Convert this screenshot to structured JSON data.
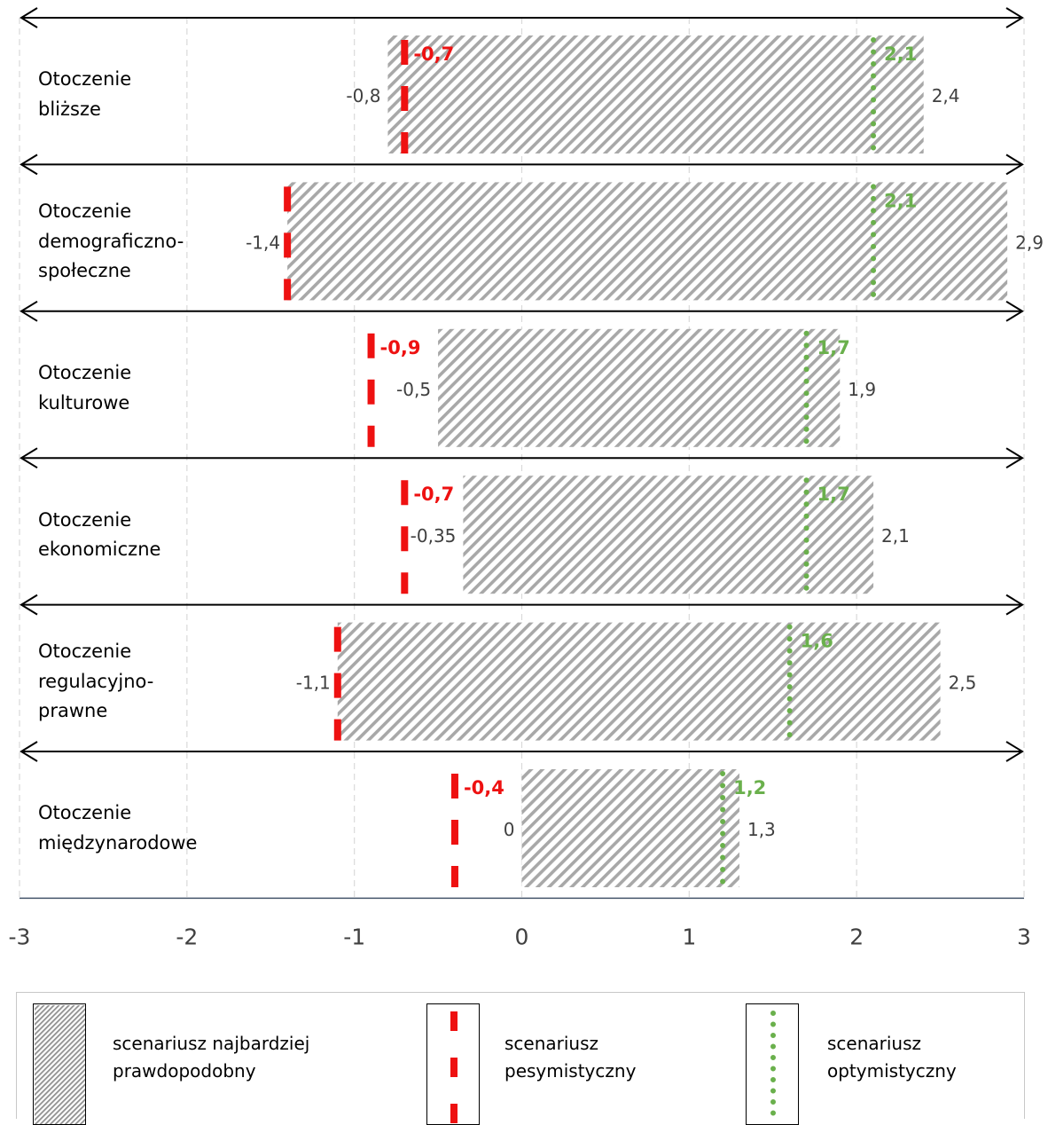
{
  "chart_data": {
    "type": "bar",
    "title": "",
    "xlabel": "",
    "ylabel": "",
    "xlim": [
      -3,
      3
    ],
    "x_ticks": [
      "-3",
      "-2",
      "-1",
      "0",
      "1",
      "2",
      "3"
    ],
    "categories": [
      {
        "name": "Otoczenie\nbliższe",
        "range": [
          -0.8,
          2.4
        ],
        "range_labels": [
          "-0,8",
          "2,4"
        ],
        "pessimistic": -0.7,
        "pessimistic_label": "-0,7",
        "optimistic": 2.1,
        "optimistic_label": "2,1"
      },
      {
        "name": "Otoczenie\ndemograficzno-\nspołeczne",
        "range": [
          -1.4,
          2.9
        ],
        "range_labels": [
          "-1,4",
          "2,9"
        ],
        "pessimistic": -1.4,
        "pessimistic_label": "",
        "optimistic": 2.1,
        "optimistic_label": "2,1"
      },
      {
        "name": "Otoczenie\nkulturowe",
        "range": [
          -0.5,
          1.9
        ],
        "range_labels": [
          "-0,5",
          "1,9"
        ],
        "pessimistic": -0.9,
        "pessimistic_label": "-0,9",
        "optimistic": 1.7,
        "optimistic_label": "1,7"
      },
      {
        "name": "Otoczenie\nekonomiczne",
        "range": [
          -0.35,
          2.1
        ],
        "range_labels": [
          "-0,35",
          "2,1"
        ],
        "pessimistic": -0.7,
        "pessimistic_label": "-0,7",
        "optimistic": 1.7,
        "optimistic_label": "1,7"
      },
      {
        "name": "Otoczenie\nregulacyjno-\nprawne",
        "range": [
          -1.1,
          2.5
        ],
        "range_labels": [
          "-1,1",
          "2,5"
        ],
        "pessimistic": -1.1,
        "pessimistic_label": "",
        "optimistic": 1.6,
        "optimistic_label": "1,6"
      },
      {
        "name": "Otoczenie\nmiędzynarodowe",
        "range": [
          0,
          1.3
        ],
        "range_labels": [
          "0",
          "1,3"
        ],
        "pessimistic": -0.4,
        "pessimistic_label": "-0,4",
        "optimistic": 1.2,
        "optimistic_label": "1,2"
      }
    ],
    "legend": {
      "range": "scenariusz najbardziej\nprawdopodobny",
      "pessimistic": "scenariusz\npesymistyczny",
      "optimistic": "scenariusz\noptymistyczny"
    },
    "colors": {
      "pessimistic": "#ee1111",
      "optimistic": "#6ab04c",
      "hatch": "#a8a8a8",
      "axis": "#44546a",
      "grid": "#d9d9d9"
    }
  }
}
